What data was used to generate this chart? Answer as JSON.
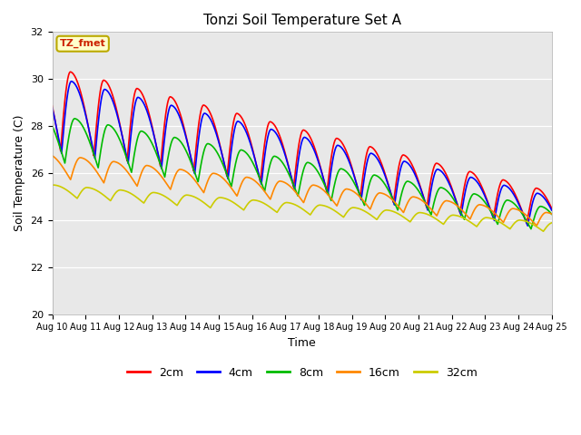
{
  "title": "Tonzi Soil Temperature Set A",
  "xlabel": "Time",
  "ylabel": "Soil Temperature (C)",
  "ylim": [
    20,
    32
  ],
  "xlim": [
    0,
    15
  ],
  "plot_bg_color": "#e8e8e8",
  "fig_bg_color": "#ffffff",
  "annotation_text": "TZ_fmet",
  "annotation_fg": "#cc2200",
  "annotation_bg": "#ffffcc",
  "annotation_border": "#bbaa00",
  "tick_labels": [
    "Aug 10",
    "Aug 11",
    "Aug 12",
    "Aug 13",
    "Aug 14",
    "Aug 15",
    "Aug 16",
    "Aug 17",
    "Aug 18",
    "Aug 19",
    "Aug 20",
    "Aug 21",
    "Aug 22",
    "Aug 23",
    "Aug 24",
    "Aug 25"
  ],
  "yticks": [
    20,
    22,
    24,
    26,
    28,
    30,
    32
  ],
  "legend_labels": [
    "2cm",
    "4cm",
    "8cm",
    "16cm",
    "32cm"
  ],
  "legend_colors": [
    "#ff0000",
    "#0000ff",
    "#00bb00",
    "#ff8800",
    "#cccc00"
  ],
  "line_widths": [
    1.2,
    1.2,
    1.2,
    1.2,
    1.2
  ]
}
